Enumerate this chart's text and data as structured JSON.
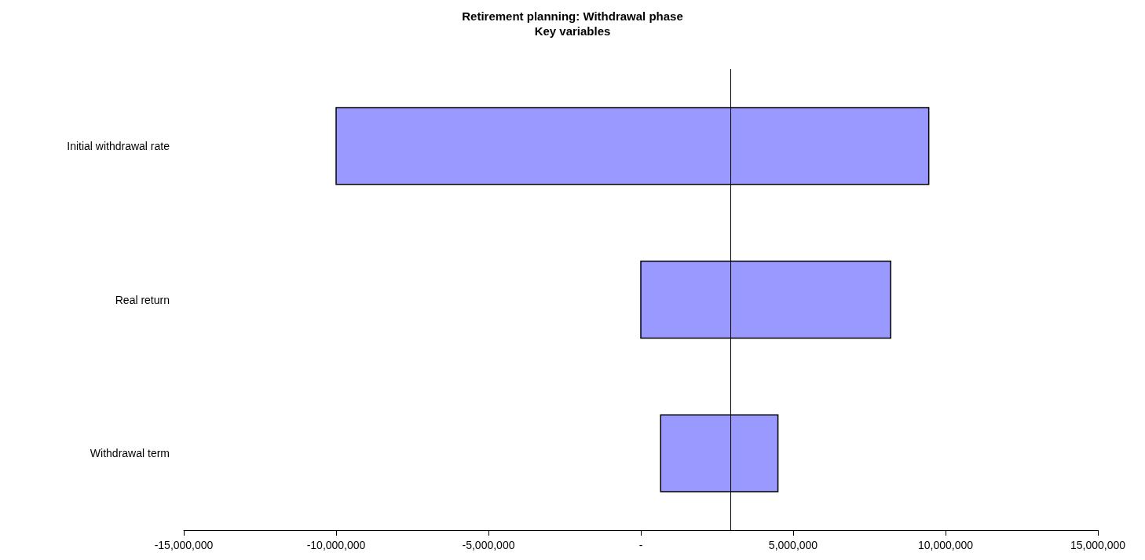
{
  "chart_data": {
    "type": "bar",
    "orientation": "horizontal",
    "title": "Retirement planning: Withdrawal phase",
    "subtitle": "Key variables",
    "categories": [
      "Initial withdrawal rate",
      "Real return",
      "Withdrawal term"
    ],
    "base": [
      -10000000,
      0,
      650000
    ],
    "values": [
      19450000,
      8200000,
      3850000
    ],
    "color": "#9999ff",
    "xlim": [
      -15000000,
      15000000
    ],
    "xticks": [
      {
        "value": -15000000,
        "label": "-15,000,000"
      },
      {
        "value": -10000000,
        "label": "-10,000,000"
      },
      {
        "value": -5000000,
        "label": "-5,000,000"
      },
      {
        "value": 0,
        "label": "-"
      },
      {
        "value": 5000000,
        "label": "5,000,000"
      },
      {
        "value": 10000000,
        "label": "10,000,000"
      },
      {
        "value": 15000000,
        "label": "15,000,000"
      }
    ],
    "ref_lines": [
      {
        "axis": "x",
        "value": 2950000,
        "label": null,
        "color": "#000000"
      }
    ]
  }
}
